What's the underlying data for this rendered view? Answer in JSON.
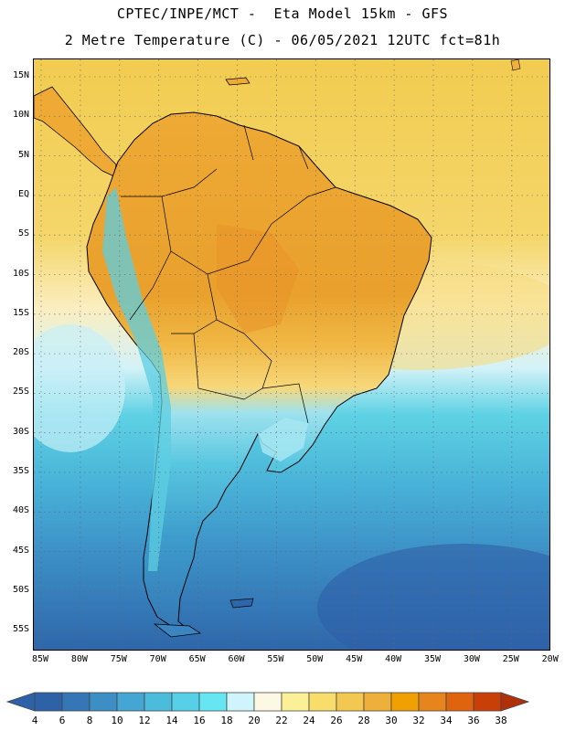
{
  "header": {
    "title_line1": "CPTEC/INPE/MCT -  Eta Model 15km - GFS",
    "title_line2": "2 Metre Temperature (C) - 06/05/2021 12UTC fct=81h"
  },
  "map": {
    "lat_labels": [
      "15N",
      "10N",
      "5N",
      "EQ",
      "5S",
      "10S",
      "15S",
      "20S",
      "25S",
      "30S",
      "35S",
      "40S",
      "45S",
      "50S",
      "55S"
    ],
    "lon_labels": [
      "85W",
      "80W",
      "75W",
      "70W",
      "65W",
      "60W",
      "55W",
      "50W",
      "45W",
      "40W",
      "35W",
      "30W",
      "25W",
      "20W"
    ],
    "ocean_north_color": "#f2cc4f",
    "ocean_south_color": "#2f6fae",
    "land_hot_color": "#e8a531",
    "land_cold_color": "#4fc8dc"
  },
  "colorbar": {
    "labels": [
      "4",
      "6",
      "8",
      "10",
      "12",
      "14",
      "16",
      "18",
      "20",
      "22",
      "24",
      "26",
      "28",
      "30",
      "32",
      "34",
      "36",
      "38"
    ],
    "colors": [
      "#2e62a8",
      "#3476b6",
      "#3c8ec5",
      "#44a6d2",
      "#4cbcdc",
      "#56d0e6",
      "#66e6f2",
      "#d0f4fc",
      "#fdf8e4",
      "#fcf096",
      "#f8dc6c",
      "#f4c850",
      "#eeb03a",
      "#f0a000",
      "#e8841c",
      "#e06410",
      "#c84008",
      "#b0300a"
    ]
  }
}
